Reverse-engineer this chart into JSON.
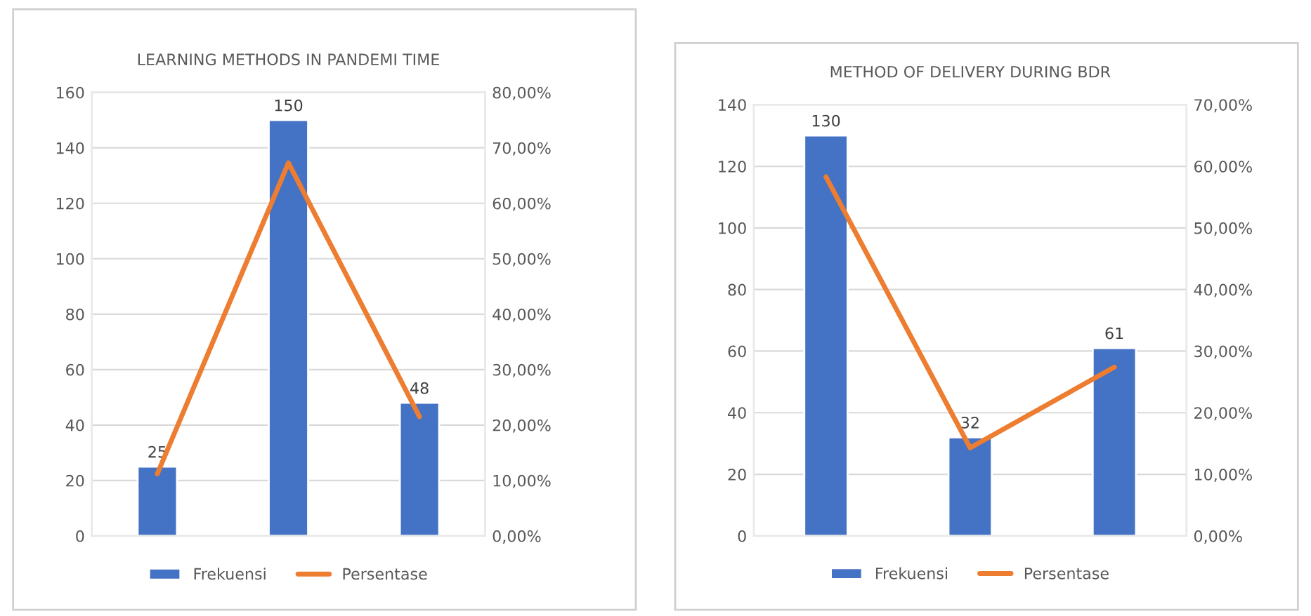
{
  "chart_data": [
    {
      "type": "bar",
      "title": "LEARNING METHODS IN PANDEMI TIME",
      "categories": [
        null,
        null,
        null
      ],
      "series": [
        {
          "name": "Frekuensi",
          "color": "#4472c4",
          "values": [
            25,
            150,
            48
          ],
          "value_labels": [
            "25",
            "150",
            "48"
          ]
        },
        {
          "name": "Persentase",
          "type": "line",
          "axis": "y2",
          "color": "#ed7d31",
          "values": [
            11.2,
            67.3,
            21.5
          ]
        }
      ],
      "ylim": [
        0,
        160
      ],
      "yticks": [
        0,
        20,
        40,
        60,
        80,
        100,
        120,
        140,
        160
      ],
      "y2lim": [
        0,
        80
      ],
      "y2ticks": [
        {
          "value": 0,
          "label": "0,00%"
        },
        {
          "value": 10,
          "label": "10,00%"
        },
        {
          "value": 20,
          "label": "20,00%"
        },
        {
          "value": 30,
          "label": "30,00%"
        },
        {
          "value": 40,
          "label": "40,00%"
        },
        {
          "value": 50,
          "label": "50,00%"
        },
        {
          "value": 60,
          "label": "60,00%"
        },
        {
          "value": 70,
          "label": "70,00%"
        },
        {
          "value": 80,
          "label": "80,00%"
        }
      ],
      "grid": "y",
      "legend": "bottom",
      "marker": "none",
      "line_style": "solid"
    },
    {
      "type": "bar",
      "title": "METHOD OF DELIVERY DURING BDR",
      "categories": [
        null,
        null,
        null
      ],
      "series": [
        {
          "name": "Frekuensi",
          "color": "#4472c4",
          "values": [
            130,
            32,
            61
          ],
          "value_labels": [
            "130",
            "32",
            "61"
          ]
        },
        {
          "name": "Persentase",
          "type": "line",
          "axis": "y2",
          "color": "#ed7d31",
          "values": [
            58.3,
            14.3,
            27.4
          ]
        }
      ],
      "ylim": [
        0,
        140
      ],
      "yticks": [
        0,
        20,
        40,
        60,
        80,
        100,
        120,
        140
      ],
      "y2lim": [
        0,
        70
      ],
      "y2ticks": [
        {
          "value": 0,
          "label": "0,00%"
        },
        {
          "value": 10,
          "label": "10,00%"
        },
        {
          "value": 20,
          "label": "20,00%"
        },
        {
          "value": 30,
          "label": "30,00%"
        },
        {
          "value": 40,
          "label": "40,00%"
        },
        {
          "value": 50,
          "label": "50,00%"
        },
        {
          "value": 60,
          "label": "60,00%"
        },
        {
          "value": 70,
          "label": "70,00%"
        }
      ],
      "grid": "y",
      "legend": "bottom",
      "marker": "none",
      "line_style": "solid"
    }
  ]
}
